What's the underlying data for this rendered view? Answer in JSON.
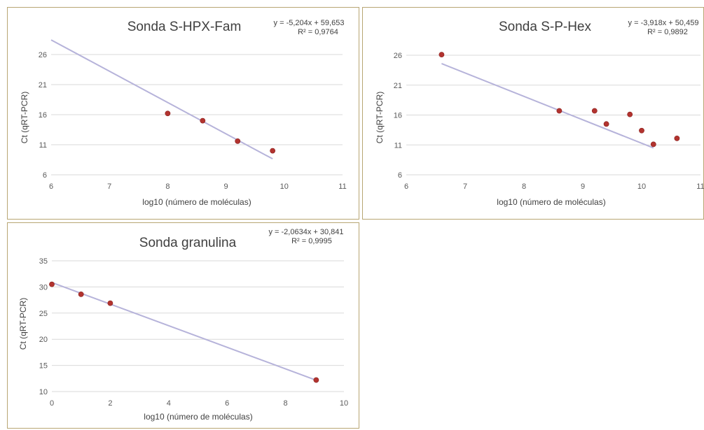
{
  "colors": {
    "trendline": "#b6b3da",
    "marker": "#b2332f",
    "grid": "#d9d9d9",
    "border": "#b8a673"
  },
  "chart_data": [
    {
      "type": "scatter",
      "title": "Sonda S-HPX-Fam",
      "equation": "y = -5,204x + 59,653",
      "r2": "R² = 0,9764",
      "xlabel": "log10 (número de moléculas)",
      "ylabel": "Ct (qRT-PCR)",
      "xlim": [
        6,
        11
      ],
      "ylim": [
        6,
        26
      ],
      "x_ticks": [
        6,
        7,
        8,
        9,
        10,
        11
      ],
      "y_ticks": [
        6,
        11,
        16,
        21,
        26
      ],
      "x_tick_labels": [
        "6",
        "7",
        "8",
        "9",
        "10",
        "11"
      ],
      "y_tick_labels": [
        "6",
        "11",
        "16",
        "21",
        "26"
      ],
      "trend_x": [
        6.0,
        9.8
      ],
      "points": [
        {
          "x": 8.0,
          "y": 16.2
        },
        {
          "x": 8.6,
          "y": 15.0
        },
        {
          "x": 9.2,
          "y": 11.6
        },
        {
          "x": 9.8,
          "y": 10.0
        }
      ],
      "trendline": {
        "slope": -5.204,
        "intercept": 59.653
      }
    },
    {
      "type": "scatter",
      "title": "Sonda S-P-Hex",
      "equation": "y = -3,918x + 50,459",
      "r2": "R² = 0,9892",
      "xlabel": "log10 (número de moléculas)",
      "ylabel": "Ct (qRT-PCR)",
      "xlim": [
        6,
        11
      ],
      "ylim": [
        6,
        26
      ],
      "x_ticks": [
        6,
        6.5,
        7,
        7.5,
        8,
        8.5,
        9,
        9.5,
        10,
        10.5,
        11
      ],
      "y_ticks": [
        6,
        11,
        16,
        21,
        26
      ],
      "x_tick_labels": [
        "6",
        "",
        "7",
        "",
        "8",
        "",
        "9",
        "",
        "10",
        "",
        "11"
      ],
      "y_tick_labels": [
        "6",
        "11",
        "16",
        "21",
        "26"
      ],
      "trend_x": [
        6.6,
        10.2
      ],
      "points": [
        {
          "x": 6.6,
          "y": 26.1
        },
        {
          "x": 8.6,
          "y": 16.7
        },
        {
          "x": 9.2,
          "y": 16.7
        },
        {
          "x": 9.8,
          "y": 16.1
        },
        {
          "x": 9.4,
          "y": 14.5
        },
        {
          "x": 10.0,
          "y": 13.4
        },
        {
          "x": 10.6,
          "y": 12.1
        },
        {
          "x": 10.2,
          "y": 11.1
        }
      ],
      "trendline": {
        "slope": -3.918,
        "intercept": 50.459
      }
    },
    {
      "type": "scatter",
      "title": "Sonda granulina",
      "equation": "y = -2,0634x + 30,841",
      "r2": "R² = 0,9995",
      "xlabel": "log10 (número de moléculas)",
      "ylabel": "Ct (qRT-PCR)",
      "xlim": [
        0,
        10
      ],
      "ylim": [
        10,
        35
      ],
      "x_ticks": [
        0,
        2,
        4,
        6,
        8,
        10
      ],
      "y_ticks": [
        10,
        15,
        20,
        25,
        30,
        35
      ],
      "x_tick_labels": [
        "0",
        "2",
        "4",
        "6",
        "8",
        "10"
      ],
      "y_tick_labels": [
        "10",
        "15",
        "20",
        "25",
        "30",
        "35"
      ],
      "trend_x": [
        0,
        9.05
      ],
      "points": [
        {
          "x": 0.0,
          "y": 30.5
        },
        {
          "x": 1.0,
          "y": 28.6
        },
        {
          "x": 2.0,
          "y": 26.9
        },
        {
          "x": 9.05,
          "y": 12.2
        }
      ],
      "trendline": {
        "slope": -2.0634,
        "intercept": 30.841
      }
    }
  ]
}
